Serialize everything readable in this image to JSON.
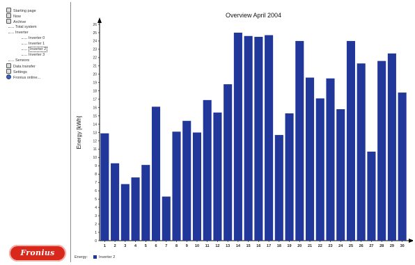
{
  "sidebar": {
    "items": [
      {
        "label": "Starting page",
        "level": 0,
        "icon": "home-icon"
      },
      {
        "label": "Now",
        "level": 0,
        "icon": "clock-icon"
      },
      {
        "label": "Archive",
        "level": 0,
        "icon": "archive-icon"
      },
      {
        "label": "Total system",
        "level": 1,
        "icon": ""
      },
      {
        "label": "Inverter",
        "level": 1,
        "icon": ""
      },
      {
        "label": "Inverter 0",
        "level": 3,
        "icon": ""
      },
      {
        "label": "Inverter 1",
        "level": 3,
        "icon": ""
      },
      {
        "label": "Inverter 2",
        "level": 3,
        "icon": "",
        "selected": true
      },
      {
        "label": "Inverter 3",
        "level": 3,
        "icon": ""
      },
      {
        "label": "Sensors",
        "level": 1,
        "icon": ""
      },
      {
        "label": "Data transfer",
        "level": 0,
        "icon": "transfer-icon"
      },
      {
        "label": "Settings",
        "level": 0,
        "icon": "settings-icon"
      },
      {
        "label": "Fronius online...",
        "level": 0,
        "icon": "globe-icon"
      }
    ],
    "logo_text": "Fronius"
  },
  "legend": {
    "prefix": "Energy:",
    "series_label": "Inverter 2"
  },
  "chart_data": {
    "type": "bar",
    "title": "Overview April 2004",
    "xlabel": "",
    "ylabel": "Energy [kWh]",
    "ylim": [
      0,
      26
    ],
    "yticks": [
      0,
      1,
      2,
      3,
      4,
      5,
      6,
      7,
      8,
      9,
      10,
      11,
      12,
      13,
      14,
      15,
      16,
      17,
      18,
      19,
      20,
      21,
      22,
      23,
      24,
      25,
      26
    ],
    "grid": false,
    "categories": [
      "1",
      "2",
      "3",
      "4",
      "5",
      "6",
      "7",
      "8",
      "9",
      "10",
      "11",
      "12",
      "13",
      "14",
      "15",
      "16",
      "17",
      "18",
      "19",
      "20",
      "21",
      "22",
      "23",
      "24",
      "25",
      "26",
      "27",
      "28",
      "29",
      "30"
    ],
    "series": [
      {
        "name": "Inverter 2",
        "color": "#22379a",
        "values": [
          12.9,
          9.3,
          6.8,
          7.6,
          9.1,
          16.1,
          5.3,
          13.1,
          14.4,
          13.0,
          16.9,
          15.4,
          18.8,
          25.0,
          24.6,
          24.5,
          24.7,
          12.7,
          15.3,
          24.0,
          19.6,
          17.1,
          19.5,
          15.8,
          24.0,
          21.3,
          10.7,
          21.6,
          22.5,
          17.8
        ]
      }
    ]
  }
}
